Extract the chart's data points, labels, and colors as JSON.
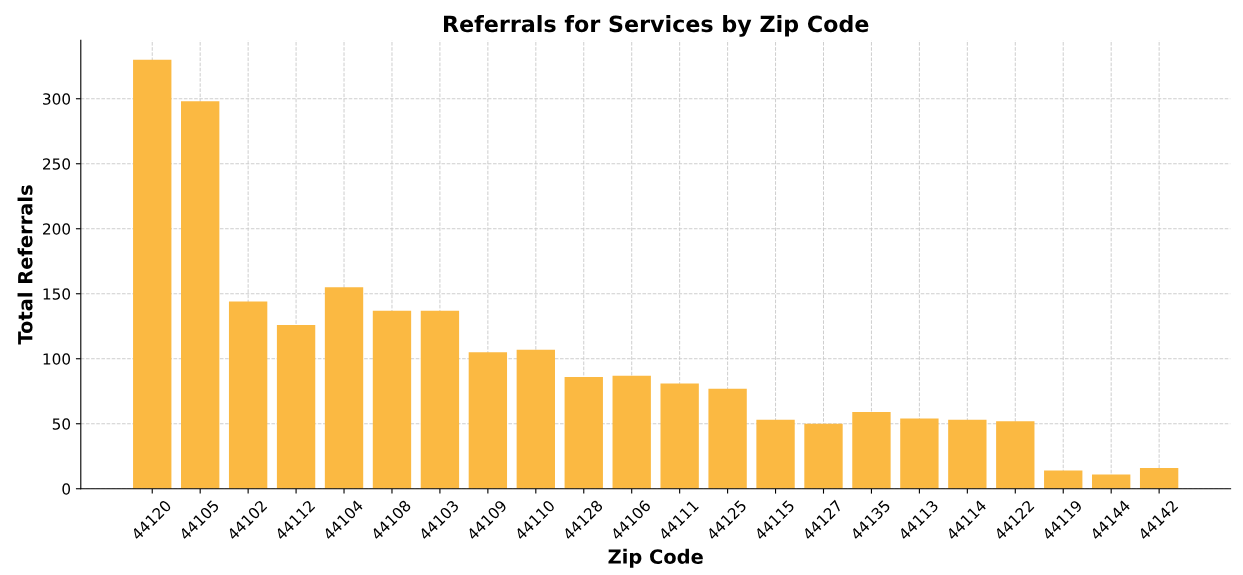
{
  "chart_data": {
    "type": "bar",
    "title": "Referrals for Services by Zip Code",
    "xlabel": "Zip Code",
    "ylabel": "Total Referrals",
    "categories": [
      "44120",
      "44105",
      "44102",
      "44112",
      "44104",
      "44108",
      "44103",
      "44109",
      "44110",
      "44128",
      "44106",
      "44111",
      "44125",
      "44115",
      "44127",
      "44135",
      "44113",
      "44114",
      "44122",
      "44119",
      "44144",
      "44142"
    ],
    "values": [
      330,
      298,
      144,
      126,
      155,
      137,
      137,
      105,
      107,
      86,
      87,
      81,
      77,
      53,
      50,
      59,
      54,
      53,
      52,
      14,
      11,
      16
    ],
    "color": "#fbb942",
    "ylim": [
      0,
      345
    ],
    "yticks": [
      0,
      50,
      100,
      150,
      200,
      250,
      300
    ],
    "grid": true
  }
}
